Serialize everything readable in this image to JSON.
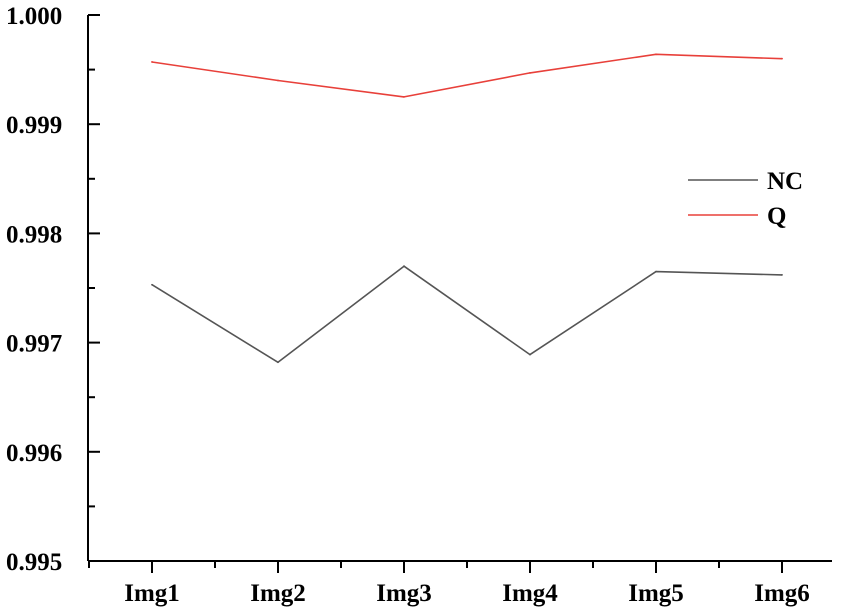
{
  "chart_data": {
    "type": "line",
    "categories": [
      "Img1",
      "Img2",
      "Img3",
      "Img4",
      "Img5",
      "Img6"
    ],
    "series": [
      {
        "name": "NC",
        "color": "#555555",
        "values": [
          0.99753,
          0.99682,
          0.9977,
          0.99689,
          0.99765,
          0.99762
        ]
      },
      {
        "name": "Q",
        "color": "#e8403a",
        "values": [
          0.99957,
          0.9994,
          0.99925,
          0.99947,
          0.99964,
          0.9996
        ]
      }
    ],
    "y_ticks": [
      "0.995",
      "0.996",
      "0.997",
      "0.998",
      "0.999",
      "1.000"
    ],
    "ylim": [
      0.995,
      1.0
    ],
    "title": "",
    "xlabel": "",
    "ylabel": "",
    "legend_position": "right",
    "grid": false
  }
}
